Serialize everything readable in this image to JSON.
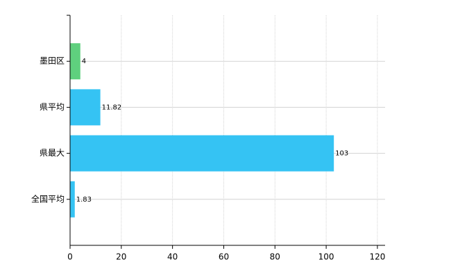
{
  "chart_data": {
    "type": "barh",
    "categories": [
      "墨田区",
      "県平均",
      "県最大",
      "全国平均"
    ],
    "values": [
      4,
      11.82,
      103,
      1.83
    ],
    "colors": [
      "#5fd07e",
      "#35c3f3",
      "#35c3f3",
      "#35c3f3"
    ],
    "xlim": [
      0,
      123
    ],
    "xticks": [
      0,
      20,
      40,
      60,
      80,
      100,
      120
    ],
    "grid": true
  }
}
